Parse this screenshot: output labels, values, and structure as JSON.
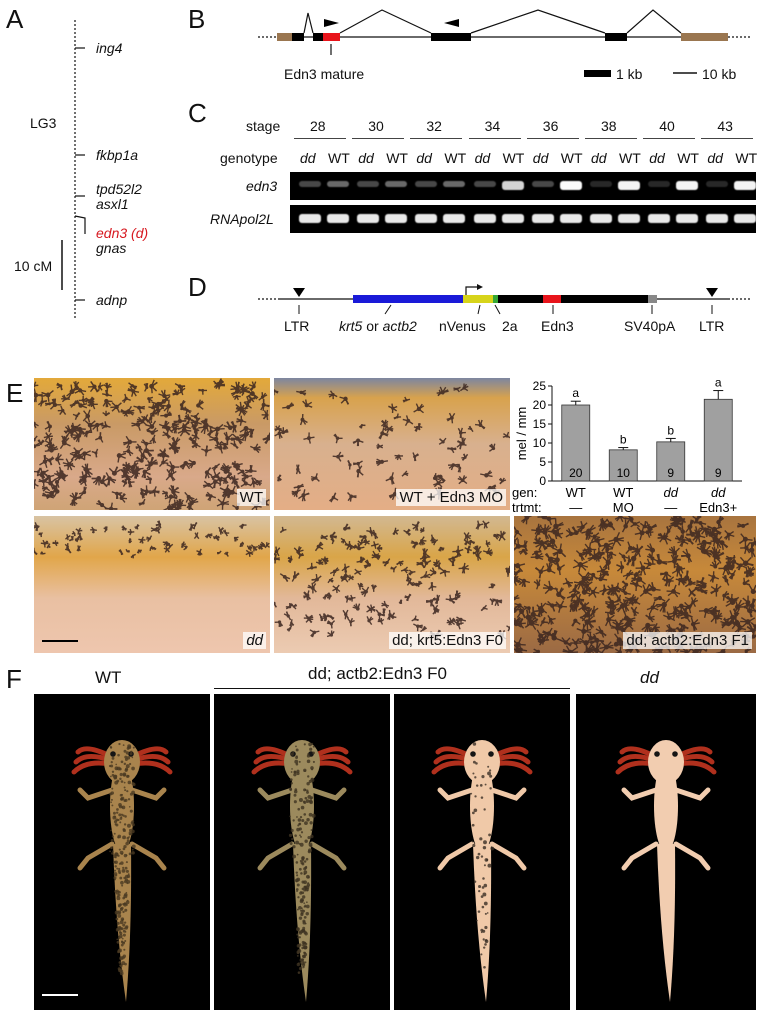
{
  "panels": {
    "A": "A",
    "B": "B",
    "C": "C",
    "D": "D",
    "E": "E",
    "F": "F"
  },
  "panelA": {
    "group": "LG3",
    "genes": [
      {
        "name": "ing4",
        "color": "#111111"
      },
      {
        "name": "fkbp1a",
        "color": "#111111"
      },
      {
        "name": "tpd52l2",
        "color": "#111111"
      },
      {
        "name": "asxl1",
        "color": "#111111"
      },
      {
        "name": "edn3 (d)",
        "color": "#d71920"
      },
      {
        "name": "gnas",
        "color": "#111111"
      },
      {
        "name": "adnp",
        "color": "#111111"
      }
    ],
    "scale": "10 cM"
  },
  "panelB": {
    "mature_label": "Edn3 mature",
    "scale_exon": "1 kb",
    "scale_intron": "10 kb",
    "colors": {
      "utr": "#9a7650",
      "mature": "#e8141b",
      "exon": "#000000"
    }
  },
  "panelC": {
    "row_stage": "stage",
    "row_genotype": "genotype",
    "stages": [
      "28",
      "30",
      "32",
      "34",
      "36",
      "38",
      "40",
      "43"
    ],
    "genotypes": [
      "dd",
      "WT"
    ],
    "genes": [
      "edn3",
      "RNApol2L"
    ]
  },
  "panelD": {
    "labels": [
      "LTR",
      "krt5",
      "or",
      "actb2",
      "nVenus",
      "2a",
      "Edn3",
      "SV40pA",
      "LTR"
    ],
    "colors": {
      "promoter": "#1a1ad8",
      "nvenus": "#d7d41a",
      "twoa": "#36a836",
      "edn3": "#e8141b",
      "sv40": "#888888"
    }
  },
  "panelE": {
    "photos": [
      "WT",
      "WT + Edn3 MO",
      "dd",
      "dd; krt5:Edn3 F0",
      "dd; actb2:Edn3 F1"
    ],
    "chart_data": {
      "type": "bar",
      "ylabel": "mel / mm",
      "ylim": [
        0,
        25
      ],
      "yticks": [
        0,
        5,
        10,
        15,
        20,
        25
      ],
      "row_labels": [
        "gen:",
        "trtmt:"
      ],
      "categories_gen": [
        "WT",
        "WT",
        "dd",
        "dd"
      ],
      "categories_trtmt": [
        "—",
        "MO",
        "—",
        "Edn3+"
      ],
      "values": [
        20.0,
        8.2,
        10.3,
        21.5
      ],
      "errors": [
        1.0,
        0.6,
        0.9,
        2.3
      ],
      "n": [
        "20",
        "10",
        "9",
        "9"
      ],
      "letters": [
        "a",
        "b",
        "b",
        "a"
      ],
      "bar_color": "#a0a0a0"
    }
  },
  "panelF": {
    "wt": "WT",
    "transgenic": "dd; actb2:Edn3 F0",
    "dd": "dd"
  }
}
